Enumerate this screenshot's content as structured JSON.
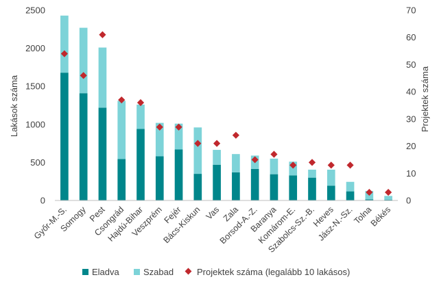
{
  "chart_data": {
    "type": "bar",
    "stacked": true,
    "categories": [
      "Győr-M.-S.",
      "Somogy",
      "Pest",
      "Csongrád",
      "Hajdú-Bihar",
      "Veszprém",
      "Fejér",
      "Bács-Kiskun",
      "Vas",
      "Zala",
      "Borsod-A.-Z.",
      "Baranya",
      "Komárom-E.",
      "Szabolcs-Sz.-B.",
      "Heves",
      "Jász-N.-Sz.",
      "Tolna",
      "Békés"
    ],
    "series": [
      {
        "name": "Eladva",
        "axis": "left",
        "color": "#00868b",
        "values": [
          1680,
          1410,
          1220,
          545,
          940,
          580,
          670,
          350,
          470,
          370,
          415,
          345,
          330,
          300,
          195,
          120,
          15,
          10
        ]
      },
      {
        "name": "Szabad",
        "axis": "left",
        "color": "#7dd3d8",
        "values": [
          750,
          860,
          790,
          765,
          320,
          440,
          340,
          610,
          195,
          240,
          175,
          205,
          180,
          105,
          210,
          125,
          110,
          50
        ]
      },
      {
        "name": "Projektek száma (legalább 10 lakásos)",
        "axis": "right",
        "type": "scatter",
        "marker": "diamond",
        "color": "#c0282d",
        "values": [
          54,
          46,
          61,
          37,
          36,
          27,
          27,
          21,
          21,
          24,
          15,
          17,
          13,
          14,
          13,
          13,
          3,
          3
        ]
      }
    ],
    "ylabel": "Lakások száma",
    "y2label": "Projektek száma",
    "ylim": [
      0,
      2500
    ],
    "y2lim": [
      0,
      70
    ],
    "yticks": [
      "0",
      "500",
      "1000",
      "1500",
      "2000",
      "2500"
    ],
    "y2ticks": [
      "0",
      "10",
      "20",
      "30",
      "40",
      "50",
      "60",
      "70"
    ],
    "grid": false,
    "legend": "bottom"
  }
}
